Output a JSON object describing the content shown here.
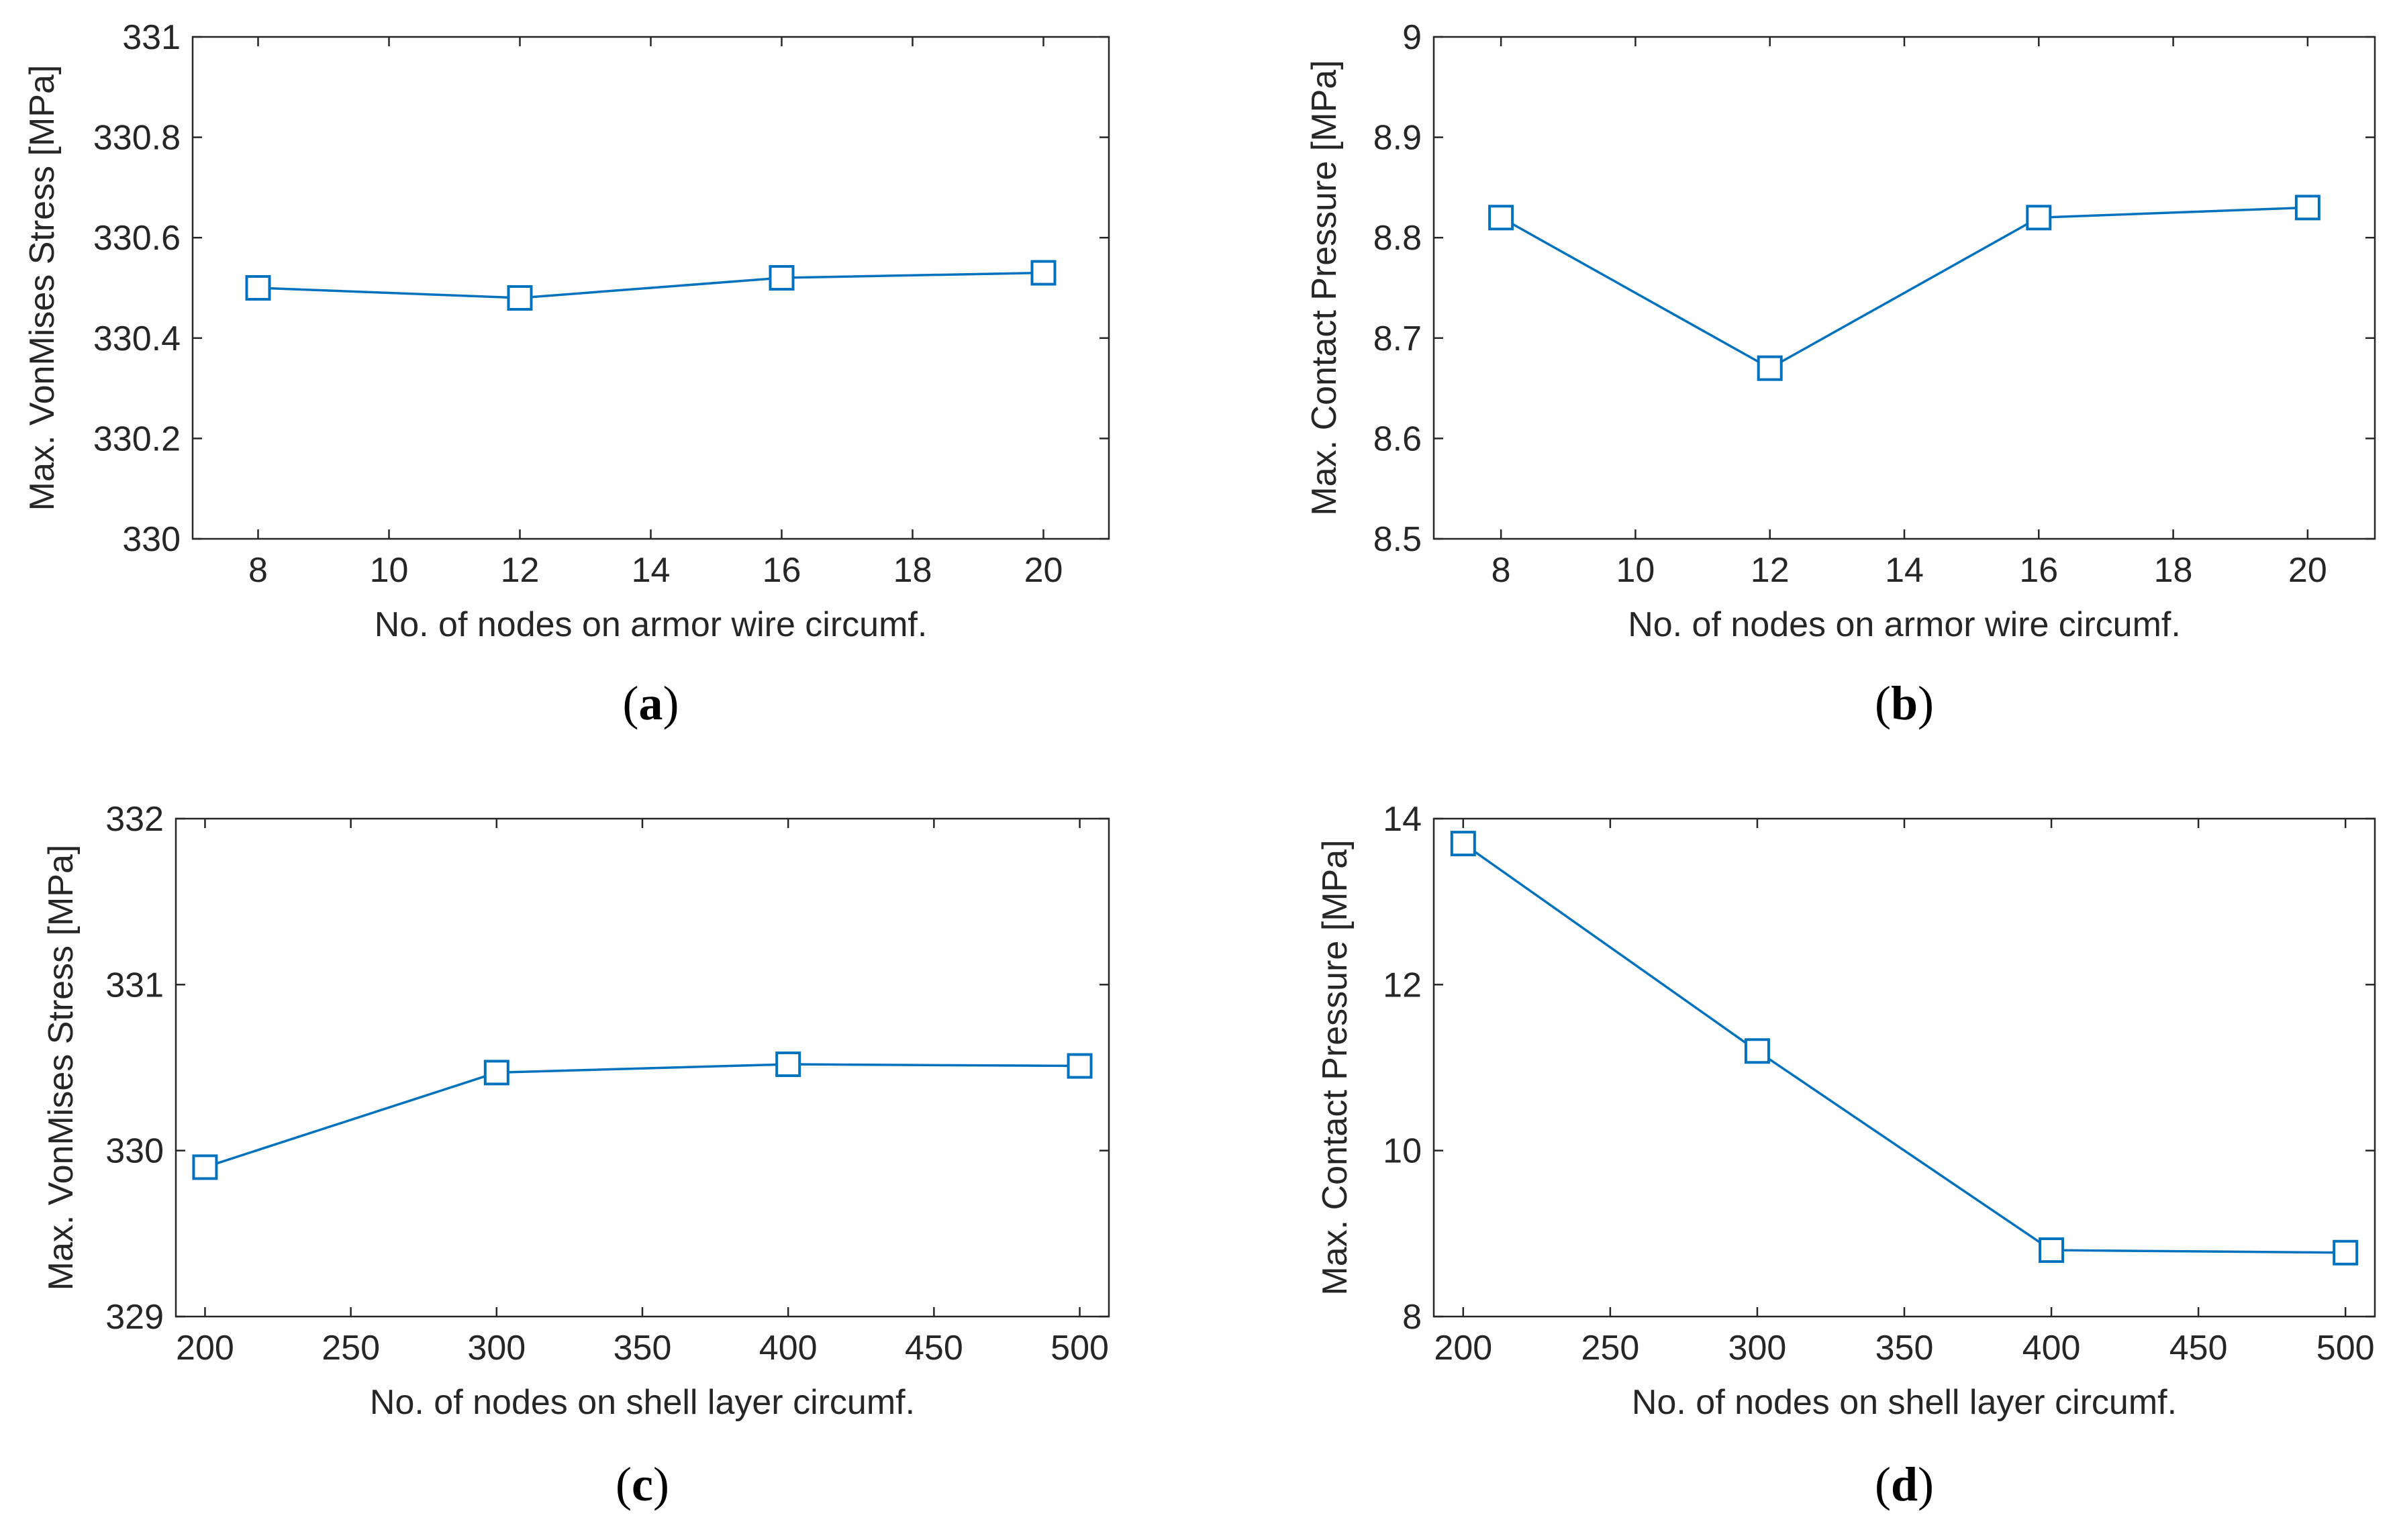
{
  "chart_data": [
    {
      "type": "line",
      "caption_letter": "a",
      "x": [
        8,
        12,
        16,
        20
      ],
      "series": [
        {
          "values": [
            330.5,
            330.48,
            330.52,
            330.53
          ],
          "color": "#0072BD",
          "marker": "square"
        }
      ],
      "xlabel": "No. of nodes on armor wire circumf.",
      "ylabel": "Max. VonMises Stress [MPa]",
      "xlim": [
        7,
        21
      ],
      "ylim": [
        330,
        331
      ],
      "xticks": [
        8,
        10,
        12,
        14,
        16,
        18,
        20
      ],
      "xtick_labels": [
        "8",
        "10",
        "12",
        "14",
        "16",
        "18",
        "20"
      ],
      "yticks": [
        330,
        330.2,
        330.4,
        330.6,
        330.8,
        331
      ],
      "ytick_labels": [
        "330",
        "330.2",
        "330.4",
        "330.6",
        "330.8",
        "331"
      ],
      "grid": false
    },
    {
      "type": "line",
      "caption_letter": "b",
      "x": [
        8,
        12,
        16,
        20
      ],
      "series": [
        {
          "values": [
            8.82,
            8.67,
            8.82,
            8.83
          ],
          "color": "#0072BD",
          "marker": "square"
        }
      ],
      "xlabel": "No. of nodes on armor wire circumf.",
      "ylabel": "Max. Contact Pressure [MPa]",
      "xlim": [
        7,
        21
      ],
      "ylim": [
        8.5,
        9
      ],
      "xticks": [
        8,
        10,
        12,
        14,
        16,
        18,
        20
      ],
      "xtick_labels": [
        "8",
        "10",
        "12",
        "14",
        "16",
        "18",
        "20"
      ],
      "yticks": [
        8.5,
        8.6,
        8.7,
        8.8,
        8.9,
        9
      ],
      "ytick_labels": [
        "8.5",
        "8.6",
        "8.7",
        "8.8",
        "8.9",
        "9"
      ],
      "grid": false
    },
    {
      "type": "line",
      "caption_letter": "c",
      "x": [
        200,
        300,
        400,
        500
      ],
      "series": [
        {
          "values": [
            329.9,
            330.47,
            330.52,
            330.51
          ],
          "color": "#0072BD",
          "marker": "square"
        }
      ],
      "xlabel": "No. of nodes on shell layer circumf.",
      "ylabel": "Max. VonMises Stress [MPa]",
      "xlim": [
        190,
        510
      ],
      "ylim": [
        329,
        332
      ],
      "xticks": [
        200,
        250,
        300,
        350,
        400,
        450,
        500
      ],
      "xtick_labels": [
        "200",
        "250",
        "300",
        "350",
        "400",
        "450",
        "500"
      ],
      "yticks": [
        329,
        330,
        331,
        332
      ],
      "ytick_labels": [
        "329",
        "330",
        "331",
        "332"
      ],
      "grid": false
    },
    {
      "type": "line",
      "caption_letter": "d",
      "x": [
        200,
        300,
        400,
        500
      ],
      "series": [
        {
          "values": [
            13.7,
            11.2,
            8.8,
            8.77
          ],
          "color": "#0072BD",
          "marker": "square"
        }
      ],
      "xlabel": "No. of nodes on shell layer circumf.",
      "ylabel": "Max. Contact Pressure [MPa]",
      "xlim": [
        190,
        510
      ],
      "ylim": [
        8,
        14
      ],
      "xticks": [
        200,
        250,
        300,
        350,
        400,
        450,
        500
      ],
      "xtick_labels": [
        "200",
        "250",
        "300",
        "350",
        "400",
        "450",
        "500"
      ],
      "yticks": [
        8,
        10,
        12,
        14
      ],
      "ytick_labels": [
        "8",
        "10",
        "12",
        "14"
      ],
      "grid": false
    }
  ]
}
